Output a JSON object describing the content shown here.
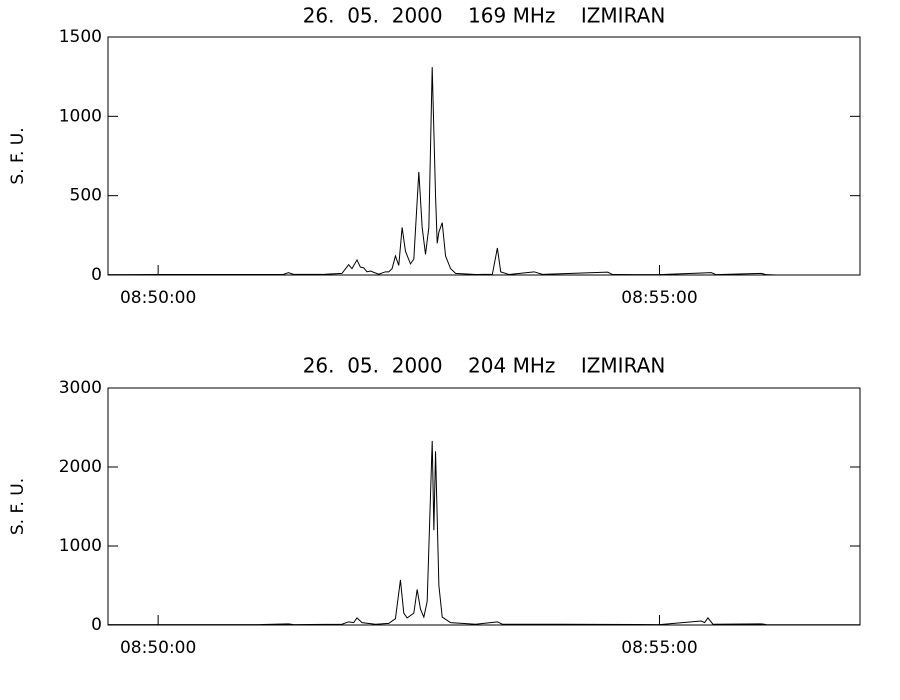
{
  "chart_data": [
    {
      "type": "line",
      "title": "26.  05.  2000    169 MHz    IZMIRAN",
      "y_label": "S. F. U.",
      "xlim": [
        "08:49:30",
        "08:57:00"
      ],
      "xticks": [
        "08:50:00",
        "08:55:00"
      ],
      "ylim": [
        0,
        1500
      ],
      "yticks": [
        0,
        500,
        1000,
        1500
      ],
      "x": [
        "08:49:30",
        "08:50:00",
        "08:51:00",
        "08:51:15",
        "08:51:18",
        "08:51:21",
        "08:51:40",
        "08:51:50",
        "08:51:54",
        "08:51:56",
        "08:51:59",
        "08:52:01",
        "08:52:03",
        "08:52:05",
        "08:52:07",
        "08:52:12",
        "08:52:16",
        "08:52:18",
        "08:52:20",
        "08:52:22",
        "08:52:24",
        "08:52:26",
        "08:52:28",
        "08:52:31",
        "08:52:33",
        "08:52:36",
        "08:52:38",
        "08:52:40",
        "08:52:42",
        "08:52:44",
        "08:52:46",
        "08:52:47",
        "08:52:48",
        "08:52:50",
        "08:52:52",
        "08:52:55",
        "08:52:58",
        "08:53:10",
        "08:53:20",
        "08:53:23",
        "08:53:25",
        "08:53:30",
        "08:53:45",
        "08:53:50",
        "08:54:29",
        "08:54:32",
        "08:55:00",
        "08:55:31",
        "08:55:34",
        "08:56:01",
        "08:56:04",
        "08:56:10"
      ],
      "series": [
        {
          "color": "#000000",
          "values": [
            2,
            3,
            3,
            4,
            15,
            4,
            5,
            10,
            65,
            40,
            95,
            50,
            45,
            20,
            25,
            5,
            20,
            20,
            40,
            120,
            60,
            300,
            150,
            70,
            100,
            650,
            300,
            130,
            300,
            1310,
            500,
            200,
            270,
            330,
            120,
            40,
            10,
            3,
            5,
            170,
            20,
            3,
            20,
            4,
            18,
            3,
            2,
            15,
            2,
            10,
            2,
            0
          ]
        }
      ]
    },
    {
      "type": "line",
      "title": "26.  05.  2000    204 MHz    IZMIRAN",
      "y_label": "S. F. U.",
      "xlim": [
        "08:49:30",
        "08:57:00"
      ],
      "xticks": [
        "08:50:00",
        "08:55:00"
      ],
      "ylim": [
        0,
        3000
      ],
      "yticks": [
        0,
        1000,
        2000,
        3000
      ],
      "x": [
        "08:49:30",
        "08:51:00",
        "08:51:18",
        "08:51:21",
        "08:51:50",
        "08:51:54",
        "08:51:57",
        "08:51:59",
        "08:52:02",
        "08:52:10",
        "08:52:18",
        "08:52:22",
        "08:52:25",
        "08:52:27",
        "08:52:29",
        "08:52:33",
        "08:52:35",
        "08:52:37",
        "08:52:39",
        "08:52:41",
        "08:52:44",
        "08:52:45",
        "08:52:46",
        "08:52:48",
        "08:52:50",
        "08:52:55",
        "08:53:10",
        "08:53:23",
        "08:53:26",
        "08:54:00",
        "08:55:00",
        "08:55:25",
        "08:55:27",
        "08:55:29",
        "08:55:32",
        "08:56:01",
        "08:56:04",
        "08:57:00"
      ],
      "series": [
        {
          "color": "#000000",
          "values": [
            5,
            5,
            15,
            5,
            10,
            40,
            30,
            90,
            30,
            10,
            20,
            80,
            570,
            150,
            90,
            150,
            450,
            200,
            100,
            300,
            2330,
            1200,
            2200,
            500,
            100,
            30,
            10,
            40,
            10,
            10,
            5,
            50,
            30,
            90,
            10,
            15,
            5,
            3
          ]
        }
      ]
    }
  ]
}
